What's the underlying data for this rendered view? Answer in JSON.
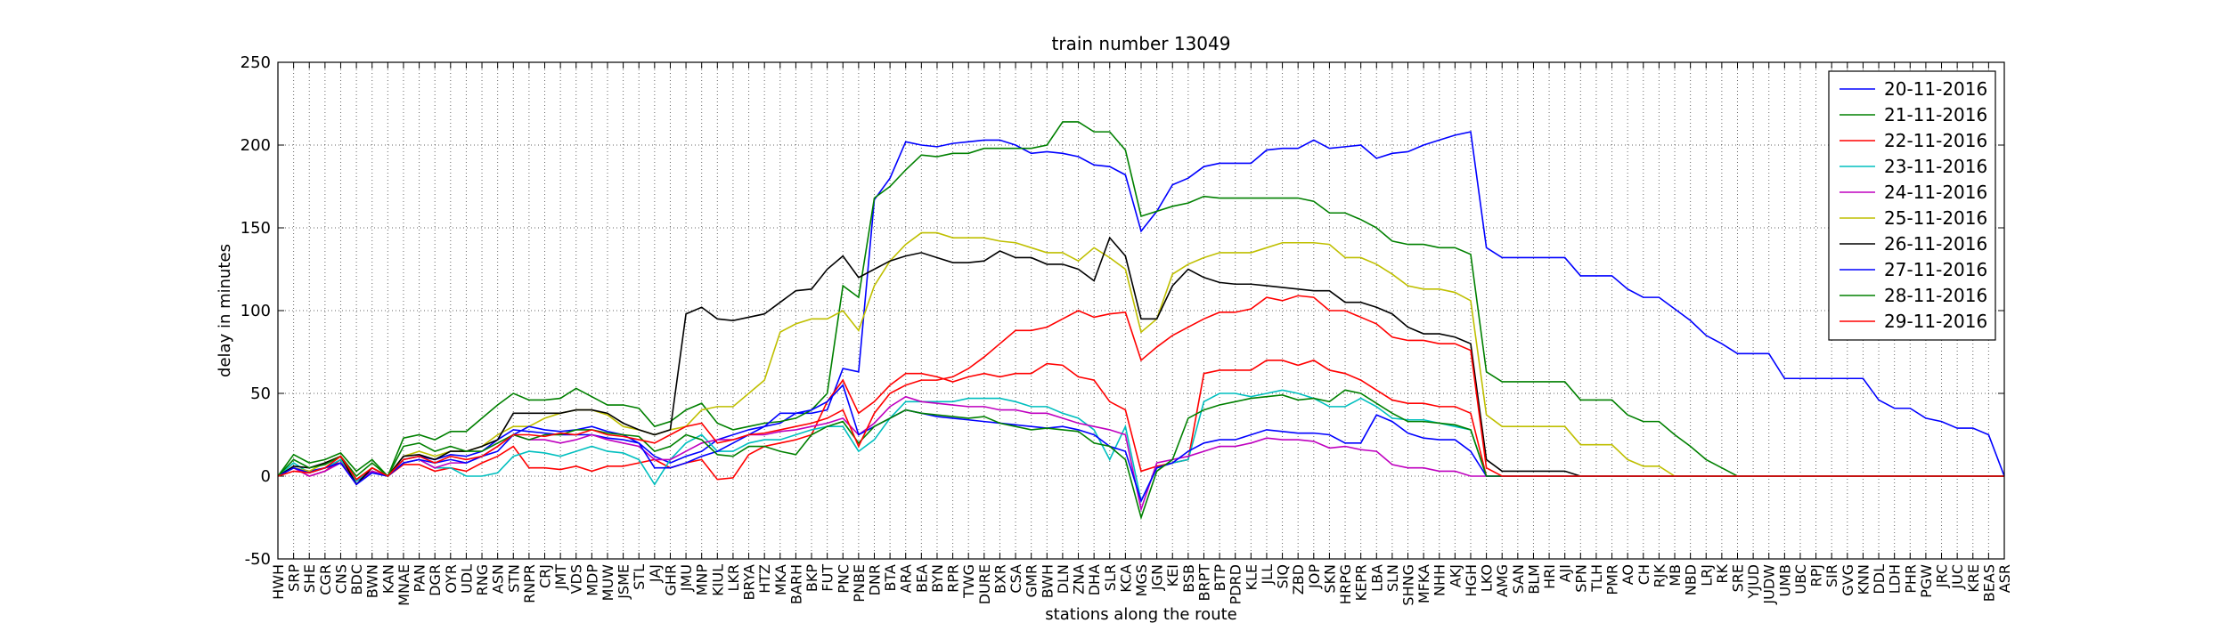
{
  "chart_data": {
    "type": "line",
    "title": "train number 13049",
    "xlabel": "stations along the route",
    "ylabel": "delay in minutes",
    "categories": [
      "HWH",
      "SRP",
      "SHE",
      "CGR",
      "CNS",
      "BDC",
      "BWN",
      "KAN",
      "MNAE",
      "PAN",
      "DGR",
      "OYR",
      "UDL",
      "RNG",
      "ASN",
      "STN",
      "RNPR",
      "CRJ",
      "JMT",
      "VDS",
      "MDP",
      "MUW",
      "JSME",
      "STL",
      "JAJ",
      "GHR",
      "JMU",
      "MNP",
      "KIUL",
      "LKR",
      "BRYA",
      "HTZ",
      "MKA",
      "BARH",
      "BKP",
      "FUT",
      "PNC",
      "PNBE",
      "DNR",
      "BTA",
      "ARA",
      "BEA",
      "BYN",
      "RPR",
      "TWG",
      "DURE",
      "BXR",
      "CSA",
      "GMR",
      "BWH",
      "DLN",
      "ZNA",
      "DHA",
      "SLR",
      "KCA",
      "MGS",
      "JGN",
      "KEI",
      "BSB",
      "BRPT",
      "BTP",
      "PDRD",
      "KLE",
      "JLL",
      "SIQ",
      "ZBD",
      "JOP",
      "SKN",
      "HRPG",
      "KEPR",
      "LBA",
      "SLN",
      "SHNG",
      "MFKA",
      "NHH",
      "AKJ",
      "HGH",
      "LKO",
      "AMG",
      "SAN",
      "BLM",
      "HRI",
      "AJI",
      "SPN",
      "TLH",
      "PMR",
      "AO",
      "CH",
      "RJK",
      "MB",
      "NBD",
      "LRJ",
      "RK",
      "SRE",
      "YJUD",
      "JUDW",
      "UMB",
      "UBC",
      "RPJ",
      "SIR",
      "GVG",
      "KNN",
      "DDL",
      "LDH",
      "PHR",
      "PGW",
      "JRC",
      "JUC",
      "KRE",
      "BEAS",
      "ASR"
    ],
    "ylim": [
      -50,
      250
    ],
    "yticks": [
      -50,
      0,
      50,
      100,
      150,
      200,
      250
    ],
    "grid": true,
    "legend": "upper right",
    "series": [
      {
        "name": "20-11-2016",
        "color": "#0000ff",
        "values": [
          0,
          5,
          3,
          5,
          8,
          -3,
          3,
          0,
          10,
          12,
          10,
          13,
          12,
          15,
          22,
          28,
          27,
          26,
          25,
          25,
          25,
          23,
          22,
          20,
          12,
          8,
          12,
          15,
          22,
          25,
          28,
          30,
          32,
          38,
          38,
          40,
          65,
          63,
          167,
          180,
          202,
          200,
          199,
          201,
          202,
          203,
          203,
          200,
          195,
          196,
          195,
          193,
          188,
          187,
          182,
          148,
          160,
          176,
          180,
          187,
          189,
          189,
          189,
          197,
          198,
          198,
          203,
          198,
          199,
          200,
          192,
          195,
          196,
          200,
          203,
          206,
          208,
          138,
          132,
          132,
          132,
          132,
          132,
          121,
          121,
          121,
          113,
          108,
          108,
          101,
          94,
          85,
          80,
          74,
          74,
          74,
          59,
          59,
          59,
          59,
          59,
          59,
          46,
          41,
          41,
          35,
          33,
          29,
          29,
          25,
          0
        ]
      },
      {
        "name": "21-11-2016",
        "color": "#008000",
        "values": [
          0,
          13,
          8,
          10,
          14,
          3,
          10,
          0,
          23,
          25,
          22,
          27,
          27,
          35,
          43,
          50,
          46,
          46,
          47,
          53,
          48,
          43,
          43,
          41,
          30,
          33,
          40,
          44,
          32,
          28,
          30,
          32,
          33,
          35,
          40,
          50,
          115,
          108,
          168,
          175,
          185,
          194,
          193,
          195,
          195,
          198,
          198,
          198,
          198,
          200,
          214,
          214,
          208,
          208,
          197,
          157,
          160,
          163,
          165,
          169,
          168,
          168,
          168,
          168,
          168,
          168,
          166,
          159,
          159,
          155,
          150,
          142,
          140,
          140,
          138,
          138,
          134,
          63,
          57,
          57,
          57,
          57,
          57,
          46,
          46,
          46,
          37,
          33,
          33,
          25,
          18,
          10,
          5,
          0,
          0,
          0,
          0,
          0,
          0,
          0,
          0,
          0,
          0,
          0,
          0,
          0,
          0,
          0,
          0,
          0,
          0
        ]
      },
      {
        "name": "22-11-2016",
        "color": "#ff0000",
        "values": [
          0,
          5,
          0,
          3,
          10,
          -5,
          3,
          0,
          7,
          7,
          3,
          5,
          3,
          8,
          12,
          18,
          5,
          5,
          4,
          6,
          3,
          6,
          6,
          8,
          10,
          5,
          8,
          10,
          -2,
          -1,
          13,
          18,
          20,
          22,
          25,
          45,
          58,
          38,
          45,
          55,
          62,
          62,
          60,
          57,
          60,
          62,
          60,
          62,
          62,
          68,
          67,
          60,
          58,
          45,
          40,
          3,
          6,
          8,
          10,
          62,
          64,
          64,
          64,
          70,
          70,
          67,
          70,
          64,
          62,
          58,
          52,
          46,
          44,
          44,
          42,
          42,
          38,
          0,
          0,
          0,
          0,
          0,
          0,
          0,
          0,
          0,
          0,
          0,
          0,
          0,
          0,
          0,
          0,
          0,
          0,
          0,
          0,
          0,
          0,
          0,
          0,
          0,
          0,
          0,
          0,
          0,
          0,
          0,
          0,
          0,
          0
        ]
      },
      {
        "name": "23-11-2016",
        "color": "#00bfbf",
        "values": [
          0,
          8,
          2,
          5,
          10,
          -3,
          5,
          0,
          8,
          10,
          5,
          5,
          0,
          0,
          2,
          12,
          15,
          14,
          12,
          15,
          18,
          15,
          14,
          10,
          -5,
          10,
          20,
          25,
          15,
          15,
          20,
          22,
          22,
          25,
          28,
          30,
          30,
          15,
          22,
          35,
          45,
          45,
          45,
          45,
          47,
          47,
          47,
          45,
          42,
          42,
          38,
          35,
          28,
          10,
          30,
          -15,
          5,
          8,
          10,
          45,
          50,
          50,
          48,
          50,
          52,
          50,
          47,
          42,
          42,
          47,
          42,
          35,
          34,
          34,
          32,
          30,
          28,
          0,
          0,
          0,
          0,
          0,
          0,
          0,
          0,
          0,
          0,
          0,
          0,
          0,
          0,
          0,
          0,
          0,
          0,
          0,
          0,
          0,
          0,
          0,
          0,
          0,
          0,
          0,
          0,
          0,
          0,
          0,
          0,
          0,
          0
        ]
      },
      {
        "name": "24-11-2016",
        "color": "#bf00bf",
        "values": [
          0,
          5,
          0,
          3,
          8,
          -5,
          3,
          0,
          8,
          10,
          5,
          8,
          8,
          12,
          18,
          25,
          22,
          22,
          20,
          22,
          25,
          22,
          20,
          18,
          10,
          10,
          15,
          20,
          22,
          22,
          25,
          25,
          27,
          28,
          30,
          32,
          35,
          25,
          32,
          42,
          48,
          45,
          44,
          43,
          42,
          42,
          40,
          40,
          38,
          38,
          35,
          32,
          30,
          28,
          25,
          -20,
          8,
          10,
          12,
          15,
          18,
          18,
          20,
          23,
          22,
          22,
          21,
          17,
          18,
          16,
          15,
          7,
          5,
          5,
          3,
          3,
          0,
          0,
          0,
          0,
          0,
          0,
          0,
          0,
          0,
          0,
          0,
          0,
          0,
          0,
          0,
          0,
          0,
          0,
          0,
          0,
          0,
          0,
          0,
          0,
          0,
          0,
          0,
          0,
          0,
          0,
          0,
          0,
          0,
          0,
          0
        ]
      },
      {
        "name": "25-11-2016",
        "color": "#bfbf00",
        "values": [
          0,
          5,
          3,
          8,
          12,
          -2,
          5,
          0,
          12,
          15,
          12,
          15,
          15,
          18,
          25,
          30,
          30,
          35,
          38,
          40,
          40,
          37,
          30,
          28,
          25,
          28,
          30,
          40,
          42,
          42,
          50,
          58,
          87,
          92,
          95,
          95,
          100,
          88,
          115,
          130,
          140,
          147,
          147,
          144,
          144,
          144,
          142,
          141,
          138,
          135,
          135,
          130,
          138,
          132,
          125,
          87,
          95,
          122,
          128,
          132,
          135,
          135,
          135,
          138,
          141,
          141,
          141,
          140,
          132,
          132,
          128,
          122,
          115,
          113,
          113,
          111,
          106,
          37,
          30,
          30,
          30,
          30,
          30,
          19,
          19,
          19,
          10,
          6,
          6,
          0,
          0,
          0,
          0,
          0,
          0,
          0,
          0,
          0,
          0,
          0,
          0,
          0,
          0,
          0,
          0,
          0,
          0,
          0,
          0,
          0,
          0
        ]
      },
      {
        "name": "26-11-2016",
        "color": "#000000",
        "values": [
          0,
          6,
          5,
          8,
          12,
          -5,
          5,
          0,
          12,
          13,
          10,
          15,
          15,
          18,
          22,
          38,
          38,
          38,
          38,
          40,
          40,
          38,
          32,
          28,
          25,
          28,
          98,
          102,
          95,
          94,
          96,
          98,
          105,
          112,
          113,
          125,
          133,
          120,
          125,
          130,
          133,
          135,
          132,
          129,
          129,
          130,
          136,
          132,
          132,
          128,
          128,
          125,
          118,
          144,
          133,
          95,
          95,
          115,
          125,
          120,
          117,
          116,
          116,
          115,
          114,
          113,
          112,
          112,
          105,
          105,
          102,
          98,
          90,
          86,
          86,
          84,
          80,
          10,
          3,
          3,
          3,
          3,
          3,
          0,
          0,
          0,
          0,
          0,
          0,
          0,
          0,
          0,
          0,
          0,
          0,
          0,
          0,
          0,
          0,
          0,
          0,
          0,
          0,
          0,
          0,
          0,
          0,
          0,
          0,
          0,
          0
        ]
      },
      {
        "name": "27-11-2016",
        "color": "#0000ff",
        "values": [
          0,
          5,
          2,
          5,
          8,
          -5,
          2,
          0,
          8,
          10,
          8,
          10,
          8,
          12,
          15,
          25,
          30,
          28,
          27,
          28,
          30,
          27,
          25,
          20,
          5,
          5,
          8,
          12,
          15,
          20,
          25,
          30,
          38,
          38,
          40,
          45,
          55,
          25,
          30,
          35,
          40,
          38,
          36,
          35,
          34,
          33,
          32,
          31,
          30,
          29,
          30,
          28,
          25,
          18,
          15,
          -15,
          5,
          8,
          15,
          20,
          22,
          22,
          25,
          28,
          27,
          26,
          26,
          25,
          20,
          20,
          37,
          33,
          26,
          23,
          22,
          22,
          15,
          0,
          0,
          0,
          0,
          0,
          0,
          0,
          0,
          0,
          0,
          0,
          0,
          0,
          0,
          0,
          0,
          0,
          0,
          0,
          0,
          0,
          0,
          0,
          0,
          0,
          0,
          0,
          0,
          0,
          0,
          0,
          0,
          0,
          0
        ]
      },
      {
        "name": "28-11-2016",
        "color": "#008000",
        "values": [
          0,
          10,
          5,
          7,
          12,
          0,
          8,
          0,
          18,
          20,
          15,
          18,
          15,
          15,
          20,
          25,
          22,
          25,
          25,
          28,
          28,
          26,
          25,
          24,
          15,
          18,
          25,
          22,
          13,
          12,
          18,
          18,
          15,
          13,
          25,
          30,
          33,
          20,
          30,
          35,
          40,
          38,
          37,
          36,
          35,
          36,
          32,
          30,
          28,
          29,
          28,
          27,
          20,
          18,
          10,
          -25,
          3,
          10,
          35,
          40,
          43,
          45,
          47,
          48,
          49,
          46,
          47,
          45,
          52,
          50,
          44,
          38,
          33,
          33,
          32,
          31,
          28,
          0,
          0,
          0,
          0,
          0,
          0,
          0,
          0,
          0,
          0,
          0,
          0,
          0,
          0,
          0,
          0,
          0,
          0,
          0,
          0,
          0,
          0,
          0,
          0,
          0,
          0,
          0,
          0,
          0,
          0,
          0,
          0,
          0,
          0
        ]
      },
      {
        "name": "29-11-2016",
        "color": "#ff0000",
        "values": [
          0,
          3,
          2,
          5,
          12,
          -2,
          5,
          0,
          10,
          12,
          8,
          12,
          10,
          12,
          18,
          25,
          25,
          24,
          26,
          25,
          28,
          25,
          24,
          22,
          20,
          25,
          30,
          32,
          20,
          22,
          25,
          26,
          28,
          30,
          32,
          35,
          40,
          18,
          38,
          50,
          55,
          58,
          58,
          60,
          65,
          72,
          80,
          88,
          88,
          90,
          95,
          100,
          96,
          98,
          99,
          70,
          78,
          85,
          90,
          95,
          99,
          99,
          101,
          108,
          106,
          109,
          108,
          100,
          100,
          96,
          92,
          84,
          82,
          82,
          80,
          80,
          76,
          5,
          0,
          0,
          0,
          0,
          0,
          0,
          0,
          0,
          0,
          0,
          0,
          0,
          0,
          0,
          0,
          0,
          0,
          0,
          0,
          0,
          0,
          0,
          0,
          0,
          0,
          0,
          0,
          0,
          0,
          0,
          0,
          0,
          0
        ]
      }
    ]
  }
}
